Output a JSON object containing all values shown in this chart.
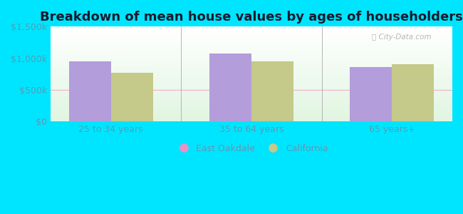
{
  "title": "Breakdown of mean house values by ages of householders",
  "categories": [
    "25 to 34 years",
    "35 to 64 years",
    "65 years+"
  ],
  "east_oakdale": [
    950000,
    1075000,
    860000
  ],
  "california": [
    775000,
    950000,
    900000
  ],
  "bar_color_eo": "#b39ddb",
  "bar_color_ca": "#c5c98a",
  "background_outer": "#00e5ff",
  "ylim": [
    0,
    1500000
  ],
  "yticks": [
    0,
    500000,
    1000000,
    1500000
  ],
  "ytick_labels": [
    "$0",
    "$500k",
    "$1,000k",
    "$1,500k"
  ],
  "legend_eo": "East Oakdale",
  "legend_ca": "California",
  "legend_dot_eo": "#e991c8",
  "legend_dot_ca": "#c5c98a",
  "bar_width": 0.3,
  "title_fontsize": 13,
  "tick_fontsize": 9,
  "legend_fontsize": 9,
  "tick_color": "#5a9ab5",
  "watermark": "City-Data.com"
}
